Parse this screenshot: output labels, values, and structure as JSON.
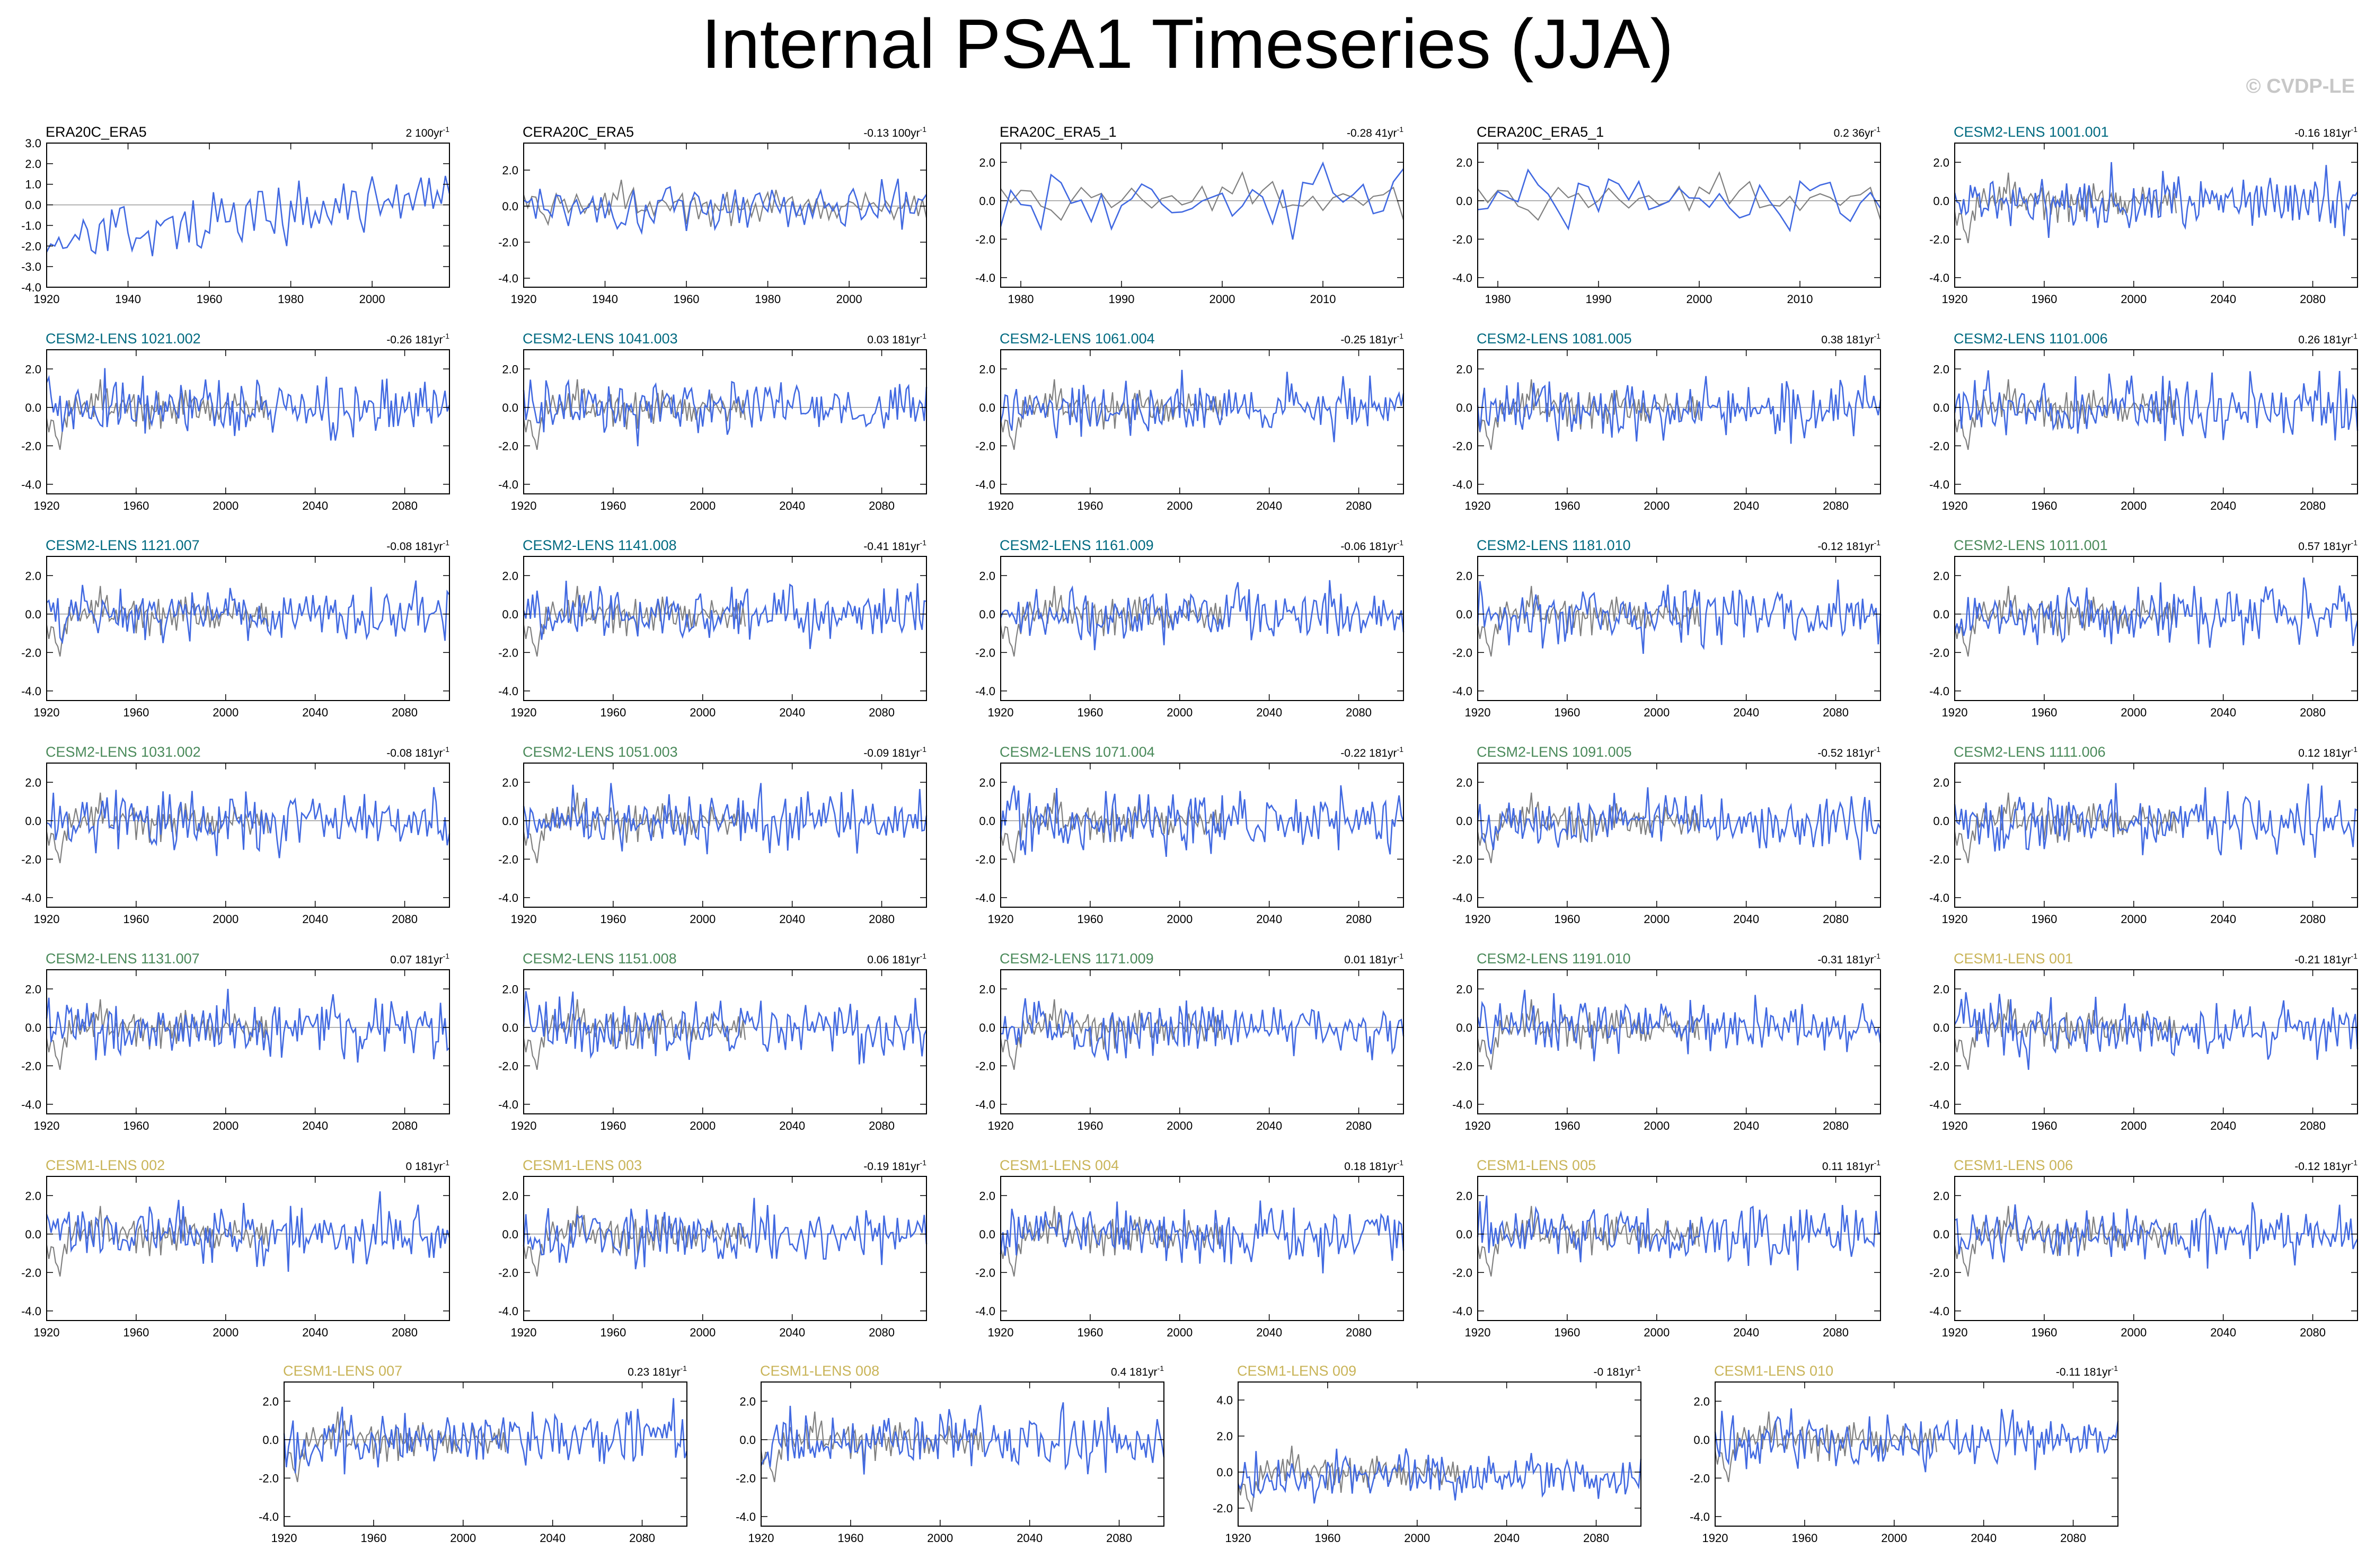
{
  "title": "Internal PSA1 Timeseries (JJA)",
  "watermark": "© CVDP-LE",
  "colors": {
    "model": "#4169e1",
    "observation": "#808080",
    "zero_line": "#999999",
    "obs_title": "#000000",
    "cesm2_a": "#006a80",
    "cesm2_b": "#4a8a5a",
    "cesm1": "#c9b458"
  },
  "chart_data": [
    {
      "type": "line",
      "title": "ERA20C_ERA5",
      "title_color": "#000000",
      "trend": "2",
      "trend_unit": "100yr",
      "x_range": [
        1920,
        2019
      ],
      "y_range": [
        -4,
        3
      ],
      "y_ticks": [
        3.0,
        2.0,
        1.0,
        0.0,
        -1.0,
        -2.0,
        -3.0,
        -4.0
      ],
      "x_ticks": [
        1920,
        1940,
        1960,
        1980,
        2000
      ],
      "obs_overlay": false
    },
    {
      "type": "line",
      "title": "CERA20C_ERA5",
      "title_color": "#000000",
      "trend": "-0.13",
      "trend_unit": "100yr",
      "x_range": [
        1920,
        2019
      ],
      "y_range": [
        -4.5,
        3.5
      ],
      "y_ticks": [
        2.0,
        0.0,
        -2.0,
        -4.0
      ],
      "x_ticks": [
        1920,
        1940,
        1960,
        1980,
        2000
      ],
      "obs_overlay": true
    },
    {
      "type": "line",
      "title": "ERA20C_ERA5_1",
      "title_color": "#000000",
      "trend": "-0.28",
      "trend_unit": "41yr",
      "x_range": [
        1978,
        2018
      ],
      "y_range": [
        -4.5,
        3
      ],
      "y_ticks": [
        2.0,
        0.0,
        -2.0,
        -4.0
      ],
      "x_ticks": [
        1980,
        1990,
        2000,
        2010
      ],
      "obs_overlay": true
    },
    {
      "type": "line",
      "title": "CERA20C_ERA5_1",
      "title_color": "#000000",
      "trend": "0.2",
      "trend_unit": "36yr",
      "x_range": [
        1978,
        2018
      ],
      "y_range": [
        -4.5,
        3
      ],
      "y_ticks": [
        2.0,
        0.0,
        -2.0,
        -4.0
      ],
      "x_ticks": [
        1980,
        1990,
        2000,
        2010
      ],
      "obs_overlay": true
    },
    {
      "type": "line",
      "title": "CESM2-LENS 1001.001",
      "title_color": "#006a80",
      "trend": "-0.16",
      "trend_unit": "181yr",
      "x_range": [
        1920,
        2100
      ],
      "y_range": [
        -4.5,
        3
      ],
      "y_ticks": [
        2.0,
        0.0,
        -2.0,
        -4.0
      ],
      "x_ticks": [
        1920,
        1960,
        2000,
        2040,
        2080
      ],
      "obs_overlay": true
    },
    {
      "type": "line",
      "title": "CESM2-LENS 1021.002",
      "title_color": "#006a80",
      "trend": "-0.26",
      "trend_unit": "181yr",
      "x_range": [
        1920,
        2100
      ],
      "y_range": [
        -4.5,
        3
      ],
      "y_ticks": [
        2.0,
        0.0,
        -2.0,
        -4.0
      ],
      "x_ticks": [
        1920,
        1960,
        2000,
        2040,
        2080
      ],
      "obs_overlay": true
    },
    {
      "type": "line",
      "title": "CESM2-LENS 1041.003",
      "title_color": "#006a80",
      "trend": "0.03",
      "trend_unit": "181yr",
      "x_range": [
        1920,
        2100
      ],
      "y_range": [
        -4.5,
        3
      ],
      "y_ticks": [
        2.0,
        0.0,
        -2.0,
        -4.0
      ],
      "x_ticks": [
        1920,
        1960,
        2000,
        2040,
        2080
      ],
      "obs_overlay": true
    },
    {
      "type": "line",
      "title": "CESM2-LENS 1061.004",
      "title_color": "#006a80",
      "trend": "-0.25",
      "trend_unit": "181yr",
      "x_range": [
        1920,
        2100
      ],
      "y_range": [
        -4.5,
        3
      ],
      "y_ticks": [
        2.0,
        0.0,
        -2.0,
        -4.0
      ],
      "x_ticks": [
        1920,
        1960,
        2000,
        2040,
        2080
      ],
      "obs_overlay": true
    },
    {
      "type": "line",
      "title": "CESM2-LENS 1081.005",
      "title_color": "#006a80",
      "trend": "0.38",
      "trend_unit": "181yr",
      "x_range": [
        1920,
        2100
      ],
      "y_range": [
        -4.5,
        3
      ],
      "y_ticks": [
        2.0,
        0.0,
        -2.0,
        -4.0
      ],
      "x_ticks": [
        1920,
        1960,
        2000,
        2040,
        2080
      ],
      "obs_overlay": true
    },
    {
      "type": "line",
      "title": "CESM2-LENS 1101.006",
      "title_color": "#006a80",
      "trend": "0.26",
      "trend_unit": "181yr",
      "x_range": [
        1920,
        2100
      ],
      "y_range": [
        -4.5,
        3
      ],
      "y_ticks": [
        2.0,
        0.0,
        -2.0,
        -4.0
      ],
      "x_ticks": [
        1920,
        1960,
        2000,
        2040,
        2080
      ],
      "obs_overlay": true
    },
    {
      "type": "line",
      "title": "CESM2-LENS 1121.007",
      "title_color": "#006a80",
      "trend": "-0.08",
      "trend_unit": "181yr",
      "x_range": [
        1920,
        2100
      ],
      "y_range": [
        -4.5,
        3
      ],
      "y_ticks": [
        2.0,
        0.0,
        -2.0,
        -4.0
      ],
      "x_ticks": [
        1920,
        1960,
        2000,
        2040,
        2080
      ],
      "obs_overlay": true
    },
    {
      "type": "line",
      "title": "CESM2-LENS 1141.008",
      "title_color": "#006a80",
      "trend": "-0.41",
      "trend_unit": "181yr",
      "x_range": [
        1920,
        2100
      ],
      "y_range": [
        -4.5,
        3
      ],
      "y_ticks": [
        2.0,
        0.0,
        -2.0,
        -4.0
      ],
      "x_ticks": [
        1920,
        1960,
        2000,
        2040,
        2080
      ],
      "obs_overlay": true
    },
    {
      "type": "line",
      "title": "CESM2-LENS 1161.009",
      "title_color": "#006a80",
      "trend": "-0.06",
      "trend_unit": "181yr",
      "x_range": [
        1920,
        2100
      ],
      "y_range": [
        -4.5,
        3
      ],
      "y_ticks": [
        2.0,
        0.0,
        -2.0,
        -4.0
      ],
      "x_ticks": [
        1920,
        1960,
        2000,
        2040,
        2080
      ],
      "obs_overlay": true
    },
    {
      "type": "line",
      "title": "CESM2-LENS 1181.010",
      "title_color": "#006a80",
      "trend": "-0.12",
      "trend_unit": "181yr",
      "x_range": [
        1920,
        2100
      ],
      "y_range": [
        -4.5,
        3
      ],
      "y_ticks": [
        2.0,
        0.0,
        -2.0,
        -4.0
      ],
      "x_ticks": [
        1920,
        1960,
        2000,
        2040,
        2080
      ],
      "obs_overlay": true
    },
    {
      "type": "line",
      "title": "CESM2-LENS 1011.001",
      "title_color": "#4a8a5a",
      "trend": "0.57",
      "trend_unit": "181yr",
      "x_range": [
        1920,
        2100
      ],
      "y_range": [
        -4.5,
        3
      ],
      "y_ticks": [
        2.0,
        0.0,
        -2.0,
        -4.0
      ],
      "x_ticks": [
        1920,
        1960,
        2000,
        2040,
        2080
      ],
      "obs_overlay": true
    },
    {
      "type": "line",
      "title": "CESM2-LENS 1031.002",
      "title_color": "#4a8a5a",
      "trend": "-0.08",
      "trend_unit": "181yr",
      "x_range": [
        1920,
        2100
      ],
      "y_range": [
        -4.5,
        3
      ],
      "y_ticks": [
        2.0,
        0.0,
        -2.0,
        -4.0
      ],
      "x_ticks": [
        1920,
        1960,
        2000,
        2040,
        2080
      ],
      "obs_overlay": true
    },
    {
      "type": "line",
      "title": "CESM2-LENS 1051.003",
      "title_color": "#4a8a5a",
      "trend": "-0.09",
      "trend_unit": "181yr",
      "x_range": [
        1920,
        2100
      ],
      "y_range": [
        -4.5,
        3
      ],
      "y_ticks": [
        2.0,
        0.0,
        -2.0,
        -4.0
      ],
      "x_ticks": [
        1920,
        1960,
        2000,
        2040,
        2080
      ],
      "obs_overlay": true
    },
    {
      "type": "line",
      "title": "CESM2-LENS 1071.004",
      "title_color": "#4a8a5a",
      "trend": "-0.22",
      "trend_unit": "181yr",
      "x_range": [
        1920,
        2100
      ],
      "y_range": [
        -4.5,
        3
      ],
      "y_ticks": [
        2.0,
        0.0,
        -2.0,
        -4.0
      ],
      "x_ticks": [
        1920,
        1960,
        2000,
        2040,
        2080
      ],
      "obs_overlay": true
    },
    {
      "type": "line",
      "title": "CESM2-LENS 1091.005",
      "title_color": "#4a8a5a",
      "trend": "-0.52",
      "trend_unit": "181yr",
      "x_range": [
        1920,
        2100
      ],
      "y_range": [
        -4.5,
        3
      ],
      "y_ticks": [
        2.0,
        0.0,
        -2.0,
        -4.0
      ],
      "x_ticks": [
        1920,
        1960,
        2000,
        2040,
        2080
      ],
      "obs_overlay": true
    },
    {
      "type": "line",
      "title": "CESM2-LENS 1111.006",
      "title_color": "#4a8a5a",
      "trend": "0.12",
      "trend_unit": "181yr",
      "x_range": [
        1920,
        2100
      ],
      "y_range": [
        -4.5,
        3
      ],
      "y_ticks": [
        2.0,
        0.0,
        -2.0,
        -4.0
      ],
      "x_ticks": [
        1920,
        1960,
        2000,
        2040,
        2080
      ],
      "obs_overlay": true
    },
    {
      "type": "line",
      "title": "CESM2-LENS 1131.007",
      "title_color": "#4a8a5a",
      "trend": "0.07",
      "trend_unit": "181yr",
      "x_range": [
        1920,
        2100
      ],
      "y_range": [
        -4.5,
        3
      ],
      "y_ticks": [
        2.0,
        0.0,
        -2.0,
        -4.0
      ],
      "x_ticks": [
        1920,
        1960,
        2000,
        2040,
        2080
      ],
      "obs_overlay": true
    },
    {
      "type": "line",
      "title": "CESM2-LENS 1151.008",
      "title_color": "#4a8a5a",
      "trend": "0.06",
      "trend_unit": "181yr",
      "x_range": [
        1920,
        2100
      ],
      "y_range": [
        -4.5,
        3
      ],
      "y_ticks": [
        2.0,
        0.0,
        -2.0,
        -4.0
      ],
      "x_ticks": [
        1920,
        1960,
        2000,
        2040,
        2080
      ],
      "obs_overlay": true
    },
    {
      "type": "line",
      "title": "CESM2-LENS 1171.009",
      "title_color": "#4a8a5a",
      "trend": "0.01",
      "trend_unit": "181yr",
      "x_range": [
        1920,
        2100
      ],
      "y_range": [
        -4.5,
        3
      ],
      "y_ticks": [
        2.0,
        0.0,
        -2.0,
        -4.0
      ],
      "x_ticks": [
        1920,
        1960,
        2000,
        2040,
        2080
      ],
      "obs_overlay": true
    },
    {
      "type": "line",
      "title": "CESM2-LENS 1191.010",
      "title_color": "#4a8a5a",
      "trend": "-0.31",
      "trend_unit": "181yr",
      "x_range": [
        1920,
        2100
      ],
      "y_range": [
        -4.5,
        3
      ],
      "y_ticks": [
        2.0,
        0.0,
        -2.0,
        -4.0
      ],
      "x_ticks": [
        1920,
        1960,
        2000,
        2040,
        2080
      ],
      "obs_overlay": true
    },
    {
      "type": "line",
      "title": "CESM1-LENS 001",
      "title_color": "#c9b458",
      "trend": "-0.21",
      "trend_unit": "181yr",
      "x_range": [
        1920,
        2100
      ],
      "y_range": [
        -4.5,
        3
      ],
      "y_ticks": [
        2.0,
        0.0,
        -2.0,
        -4.0
      ],
      "x_ticks": [
        1920,
        1960,
        2000,
        2040,
        2080
      ],
      "obs_overlay": true
    },
    {
      "type": "line",
      "title": "CESM1-LENS 002",
      "title_color": "#c9b458",
      "trend": "0",
      "trend_unit": "181yr",
      "x_range": [
        1920,
        2100
      ],
      "y_range": [
        -4.5,
        3
      ],
      "y_ticks": [
        2.0,
        0.0,
        -2.0,
        -4.0
      ],
      "x_ticks": [
        1920,
        1960,
        2000,
        2040,
        2080
      ],
      "obs_overlay": true
    },
    {
      "type": "line",
      "title": "CESM1-LENS 003",
      "title_color": "#c9b458",
      "trend": "-0.19",
      "trend_unit": "181yr",
      "x_range": [
        1920,
        2100
      ],
      "y_range": [
        -4.5,
        3
      ],
      "y_ticks": [
        2.0,
        0.0,
        -2.0,
        -4.0
      ],
      "x_ticks": [
        1920,
        1960,
        2000,
        2040,
        2080
      ],
      "obs_overlay": true
    },
    {
      "type": "line",
      "title": "CESM1-LENS 004",
      "title_color": "#c9b458",
      "trend": "0.18",
      "trend_unit": "181yr",
      "x_range": [
        1920,
        2100
      ],
      "y_range": [
        -4.5,
        3
      ],
      "y_ticks": [
        2.0,
        0.0,
        -2.0,
        -4.0
      ],
      "x_ticks": [
        1920,
        1960,
        2000,
        2040,
        2080
      ],
      "obs_overlay": true
    },
    {
      "type": "line",
      "title": "CESM1-LENS 005",
      "title_color": "#c9b458",
      "trend": "0.11",
      "trend_unit": "181yr",
      "x_range": [
        1920,
        2100
      ],
      "y_range": [
        -4.5,
        3
      ],
      "y_ticks": [
        2.0,
        0.0,
        -2.0,
        -4.0
      ],
      "x_ticks": [
        1920,
        1960,
        2000,
        2040,
        2080
      ],
      "obs_overlay": true
    },
    {
      "type": "line",
      "title": "CESM1-LENS 006",
      "title_color": "#c9b458",
      "trend": "-0.12",
      "trend_unit": "181yr",
      "x_range": [
        1920,
        2100
      ],
      "y_range": [
        -4.5,
        3
      ],
      "y_ticks": [
        2.0,
        0.0,
        -2.0,
        -4.0
      ],
      "x_ticks": [
        1920,
        1960,
        2000,
        2040,
        2080
      ],
      "obs_overlay": true
    },
    {
      "type": "line",
      "title": "CESM1-LENS 007",
      "title_color": "#c9b458",
      "trend": "0.23",
      "trend_unit": "181yr",
      "x_range": [
        1920,
        2100
      ],
      "y_range": [
        -4.5,
        3
      ],
      "y_ticks": [
        2.0,
        0.0,
        -2.0,
        -4.0
      ],
      "x_ticks": [
        1920,
        1960,
        2000,
        2040,
        2080
      ],
      "obs_overlay": true
    },
    {
      "type": "line",
      "title": "CESM1-LENS 008",
      "title_color": "#c9b458",
      "trend": "0.4",
      "trend_unit": "181yr",
      "x_range": [
        1920,
        2100
      ],
      "y_range": [
        -4.5,
        3
      ],
      "y_ticks": [
        2.0,
        0.0,
        -2.0,
        -4.0
      ],
      "x_ticks": [
        1920,
        1960,
        2000,
        2040,
        2080
      ],
      "obs_overlay": true
    },
    {
      "type": "line",
      "title": "CESM1-LENS 009",
      "title_color": "#c9b458",
      "trend": "-0",
      "trend_unit": "181yr",
      "x_range": [
        1920,
        2100
      ],
      "y_range": [
        -3,
        5
      ],
      "y_ticks": [
        4.0,
        2.0,
        0.0,
        -2.0
      ],
      "x_ticks": [
        1920,
        1960,
        2000,
        2040,
        2080
      ],
      "obs_overlay": true
    },
    {
      "type": "line",
      "title": "CESM1-LENS 010",
      "title_color": "#c9b458",
      "trend": "-0.11",
      "trend_unit": "181yr",
      "x_range": [
        1920,
        2100
      ],
      "y_range": [
        -4.5,
        3
      ],
      "y_ticks": [
        2.0,
        0.0,
        -2.0,
        -4.0
      ],
      "x_ticks": [
        1920,
        1960,
        2000,
        2040,
        2080
      ],
      "obs_overlay": true
    }
  ]
}
